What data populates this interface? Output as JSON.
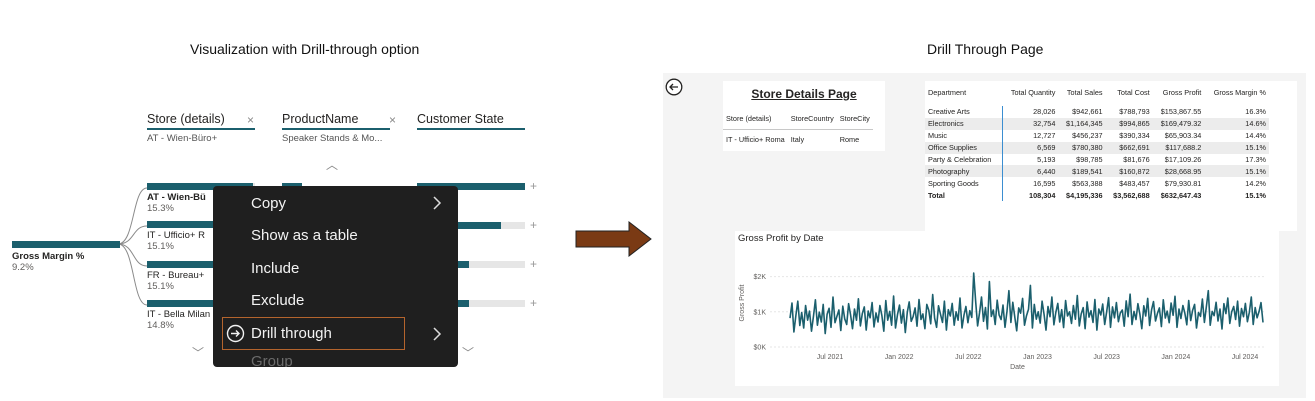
{
  "captions": {
    "left": "Visualization with Drill-through option",
    "right": "Drill Through Page"
  },
  "decomp": {
    "headers": [
      {
        "title": "Store (details)",
        "sub": "AT - Wien-Büro+"
      },
      {
        "title": "ProductName",
        "sub": "Speaker Stands & Mo..."
      },
      {
        "title": "Customer State",
        "sub": ""
      }
    ],
    "root": {
      "label": "Gross Margin %",
      "value": "9.2%"
    },
    "store_nodes": [
      {
        "label": "AT - Wien-Bü",
        "value": "15.3%",
        "fill": 0.98
      },
      {
        "label": "IT - Ufficio+ R",
        "value": "15.1%",
        "fill": 0.97
      },
      {
        "label": "FR - Bureau+",
        "value": "15.1%",
        "fill": 0.97
      },
      {
        "label": "IT - Bella Milan",
        "value": "14.8%",
        "fill": 0.95
      }
    ],
    "state_nodes": [
      {
        "label": "",
        "fill": 1.0
      },
      {
        "label": "erreich",
        "fill": 0.78
      },
      {
        "label": "ork",
        "fill": 0.48
      },
      {
        "label": "",
        "fill": 0.48
      }
    ],
    "plus": "+",
    "close": "×"
  },
  "context_menu": {
    "items": [
      {
        "label": "Copy",
        "submenu": true
      },
      {
        "label": "Show as a table",
        "submenu": false
      },
      {
        "label": "Include",
        "submenu": false
      },
      {
        "label": "Exclude",
        "submenu": false
      },
      {
        "label": "Drill through",
        "submenu": true,
        "icon": "circle-arrow-icon",
        "highlighted": true
      },
      {
        "label": "Group",
        "submenu": false,
        "faded": true
      }
    ]
  },
  "arrow_color": "#7a3a14",
  "accent": "#1b5f6d",
  "drill_page": {
    "back_icon": "back-arrow-icon",
    "title": "Store Details Page",
    "store_table": {
      "headers": [
        "Store (details)",
        "StoreCountry",
        "StoreCity"
      ],
      "row": [
        "IT - Ufficio+ Roma",
        "Italy",
        "Rome"
      ]
    },
    "dept_table": {
      "headers": [
        "Department",
        "Total Quantity",
        "Total Sales",
        "Total Cost",
        "Gross Profit",
        "Gross Margin %"
      ],
      "rows": [
        [
          "Creative Arts",
          "28,026",
          "$942,661",
          "$788,793",
          "$153,867.55",
          "16.3%"
        ],
        [
          "Electronics",
          "32,754",
          "$1,164,345",
          "$994,865",
          "$169,479.32",
          "14.6%"
        ],
        [
          "Music",
          "12,727",
          "$456,237",
          "$390,334",
          "$65,903.34",
          "14.4%"
        ],
        [
          "Office Supplies",
          "6,569",
          "$780,380",
          "$662,691",
          "$117,688.2",
          "15.1%"
        ],
        [
          "Party & Celebration",
          "5,193",
          "$98,785",
          "$81,676",
          "$17,109.26",
          "17.3%"
        ],
        [
          "Photography",
          "6,440",
          "$189,541",
          "$160,872",
          "$28,668.95",
          "15.1%"
        ],
        [
          "Sporting Goods",
          "16,595",
          "$563,388",
          "$483,457",
          "$79,930.81",
          "14.2%"
        ]
      ],
      "total": [
        "Total",
        "108,304",
        "$4,195,336",
        "$3,562,688",
        "$632,647.43",
        "15.1%"
      ]
    }
  },
  "chart_data": {
    "type": "line",
    "title": "Gross Profit by Date",
    "xlabel": "Date",
    "ylabel": "Gross Profit",
    "x_ticks": [
      "Jul 2021",
      "Jan 2022",
      "Jul 2022",
      "Jan 2023",
      "Jul 2023",
      "Jan 2024",
      "Jul 2024"
    ],
    "y_ticks": [
      "$0K",
      "$1K",
      "$2K"
    ],
    "ylim": [
      0,
      2500
    ],
    "x_range": [
      "2021-01",
      "2024-10"
    ],
    "color": "#1b5f6d",
    "grid": true,
    "series": [
      {
        "values": [
          820,
          1250,
          430,
          900,
          1300,
          610,
          980,
          540,
          1180,
          760,
          1020,
          450,
          880,
          1340,
          620,
          990,
          710,
          1210,
          380,
          930,
          1100,
          560,
          1420,
          690,
          870,
          1050,
          470,
          1160,
          800,
          640,
          1230,
          910,
          520,
          1080,
          760,
          1370,
          600,
          950,
          1140,
          480,
          1020,
          830,
          1260,
          570,
          970,
          710,
          1180,
          890,
          450,
          1320,
          760,
          1010,
          620,
          1450,
          540,
          920,
          1190,
          680,
          1060,
          410,
          990,
          1280,
          730,
          860,
          1110,
          590,
          1350,
          780,
          940,
          520,
          1210,
          1040,
          660,
          1490,
          820,
          560,
          1170,
          930,
          700,
          1300,
          480,
          1060,
          880,
          1240,
          620,
          1000,
          760,
          1390,
          540,
          910,
          1150,
          690,
          1030,
          840,
          2100,
          1280,
          600,
          980,
          1420,
          730,
          1120,
          510,
          1860,
          870,
          1050,
          640,
          1330,
          910,
          780,
          1190,
          560,
          1020,
          1600,
          700,
          1270,
          850,
          460,
          1110,
          960,
          1380,
          620,
          890,
          1070,
          1750,
          540,
          1210,
          790,
          1000,
          680,
          1300,
          920,
          480,
          1150,
          860,
          1420,
          630,
          980,
          1240,
          710,
          1060,
          550,
          1320,
          880,
          1000,
          670,
          1180,
          790,
          1460,
          600,
          940,
          1120,
          520,
          1280,
          850,
          1030,
          700,
          1350,
          480,
          1080,
          910,
          1220,
          640,
          990,
          1400,
          560,
          1140,
          830,
          1260,
          720,
          970,
          1050,
          590,
          1310,
          860,
          1500,
          640,
          1010,
          780,
          1230,
          930,
          520,
          1170,
          880,
          1380,
          610,
          1060,
          1290,
          740,
          960,
          1110,
          580,
          1340,
          820,
          1020,
          690,
          1250,
          900,
          1440,
          560,
          1080,
          810,
          1180,
          970,
          630,
          1320,
          750,
          1040,
          1210,
          540,
          980,
          870,
          1360,
          700,
          1130,
          1600,
          620,
          1010,
          890,
          1270,
          740,
          1080,
          510,
          1230,
          950,
          1390,
          670,
          1000,
          1150,
          780,
          1300,
          590,
          1090,
          860,
          1240,
          720,
          980,
          1420,
          640,
          1120,
          830,
          1010,
          1260,
          700
        ],
        "note_values": "Gross Profit in $, approximate readings; dates span Jan 2021 – Oct 2024"
      }
    ]
  }
}
